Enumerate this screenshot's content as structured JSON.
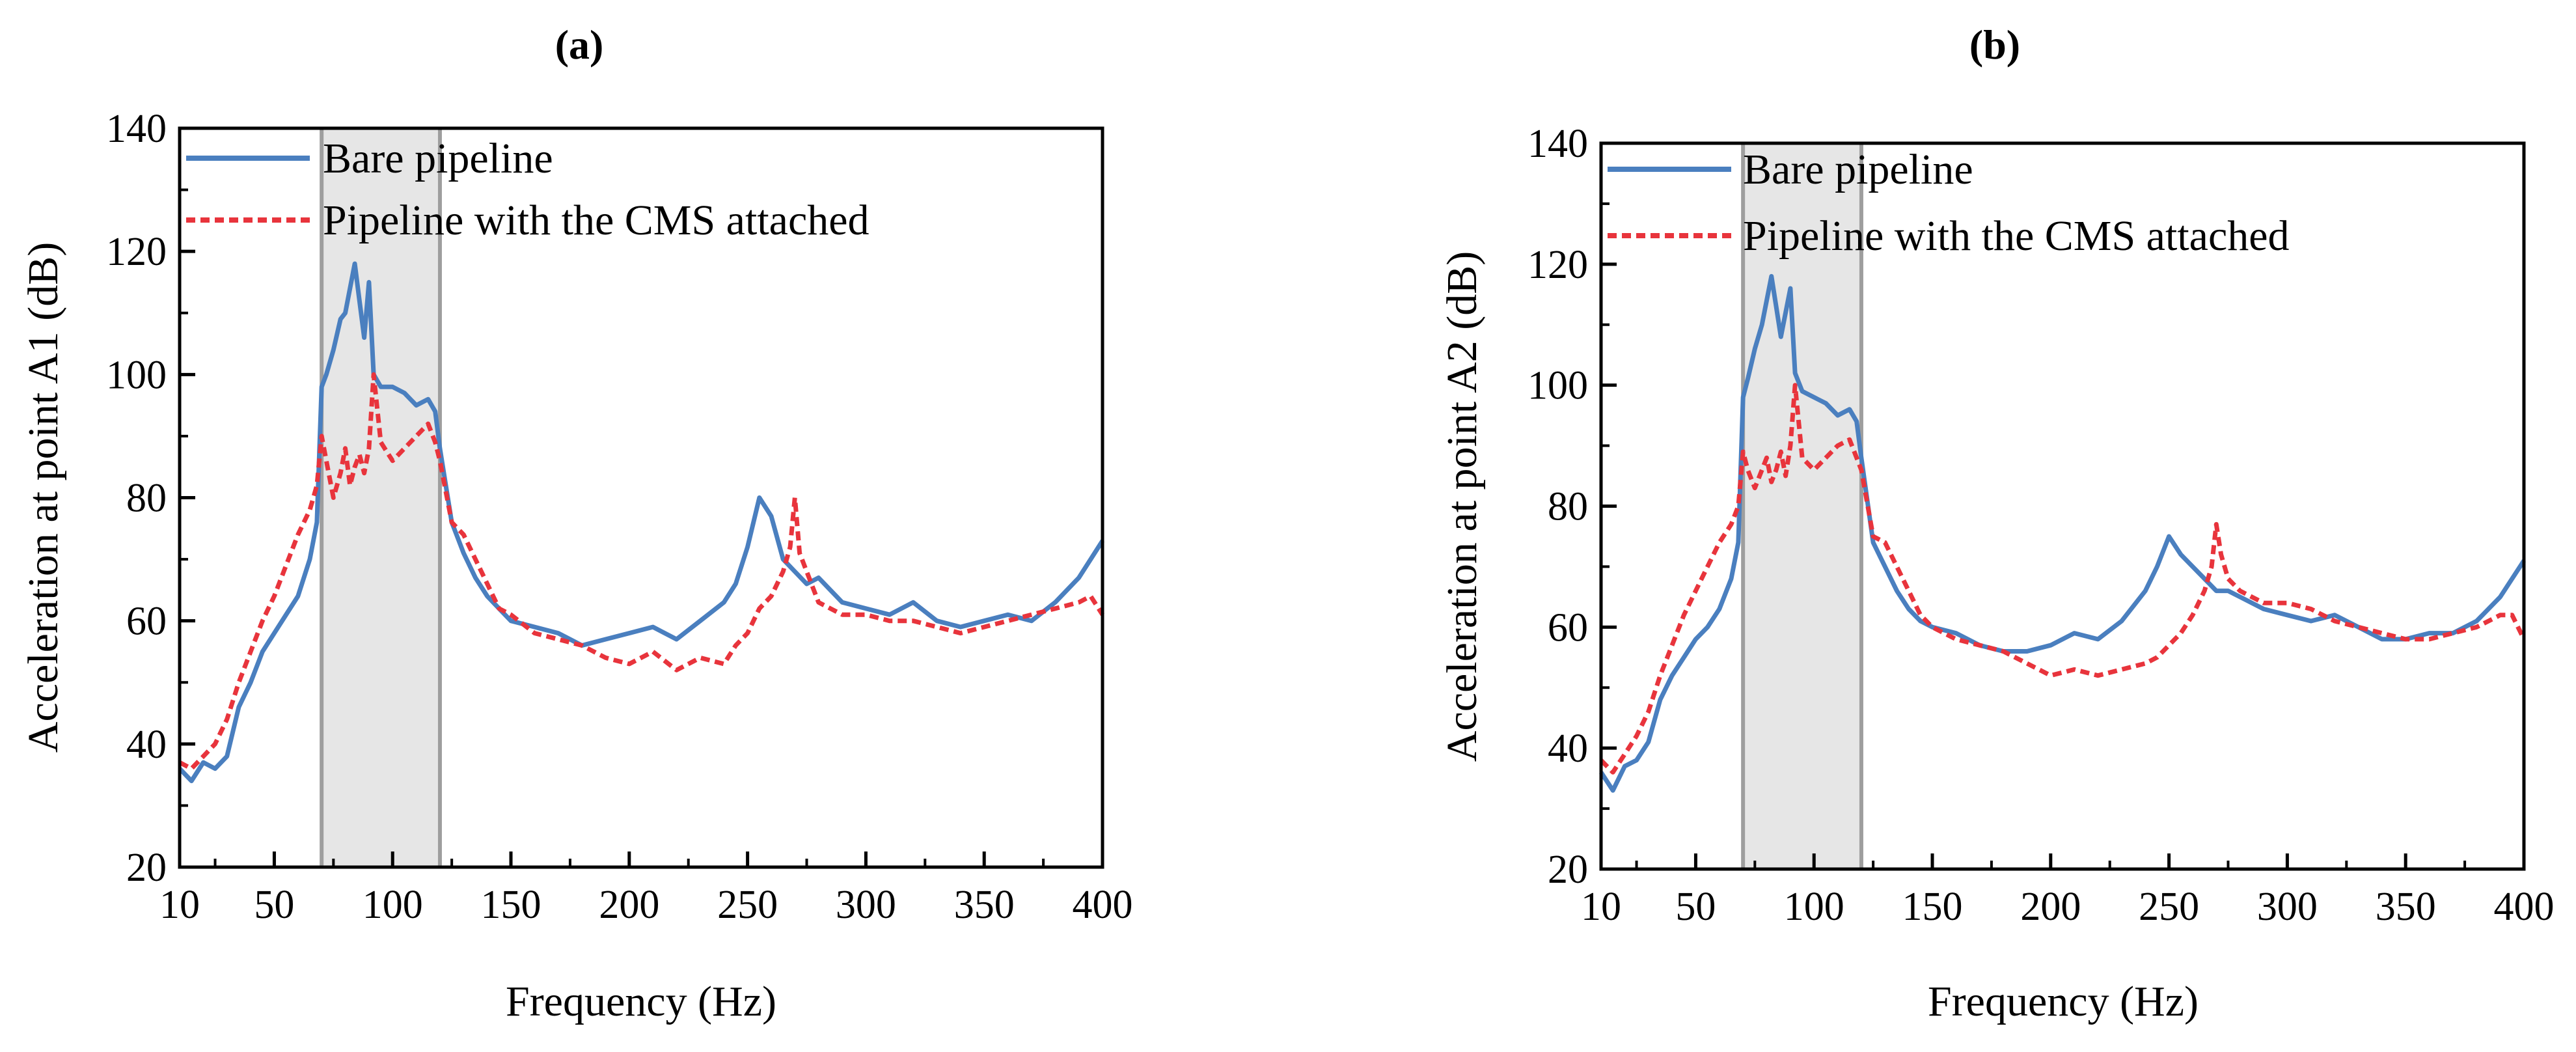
{
  "figure": {
    "description_free": true
  },
  "chart_data": [
    {
      "type": "line",
      "panel_label": "(a)",
      "xlabel": "Frequency (Hz)",
      "ylabel": "Acceleration at point A1 (dB)",
      "xlim": [
        10,
        400
      ],
      "ylim": [
        20,
        140
      ],
      "xticks": [
        10,
        50,
        100,
        150,
        200,
        250,
        300,
        350,
        400
      ],
      "yticks": [
        20,
        40,
        60,
        80,
        100,
        120,
        140
      ],
      "shaded_band": {
        "x_start": 70,
        "x_end": 120,
        "color": "#e6e6e6",
        "edge_color": "#9e9e9e"
      },
      "legend": {
        "placement": "top-left"
      },
      "series": [
        {
          "name": "Bare pipeline",
          "color": "#4a7fbf",
          "style": "solid",
          "x": [
            10,
            15,
            20,
            25,
            30,
            35,
            40,
            45,
            50,
            55,
            60,
            65,
            68,
            70,
            72,
            75,
            78,
            80,
            82,
            84,
            86,
            88,
            90,
            92,
            95,
            100,
            105,
            110,
            115,
            118,
            120,
            125,
            130,
            135,
            140,
            145,
            150,
            160,
            170,
            180,
            190,
            200,
            210,
            220,
            230,
            240,
            245,
            250,
            255,
            260,
            265,
            270,
            275,
            280,
            290,
            300,
            310,
            320,
            330,
            340,
            350,
            360,
            370,
            380,
            390,
            395,
            400
          ],
          "y": [
            36,
            34,
            37,
            36,
            38,
            46,
            50,
            55,
            58,
            61,
            64,
            70,
            76,
            98,
            100,
            104,
            109,
            110,
            114,
            118,
            112,
            106,
            115,
            100,
            98,
            98,
            97,
            95,
            96,
            94,
            88,
            76,
            71,
            67,
            64,
            62,
            60,
            59,
            58,
            56,
            57,
            58,
            59,
            57,
            60,
            63,
            66,
            72,
            80,
            77,
            70,
            68,
            66,
            67,
            63,
            62,
            61,
            63,
            60,
            59,
            60,
            61,
            60,
            63,
            67,
            70,
            73
          ]
        },
        {
          "name": "Pipeline with the CMS attached",
          "color": "#e8343c",
          "style": "dashed",
          "x": [
            10,
            15,
            20,
            25,
            30,
            35,
            40,
            45,
            50,
            55,
            60,
            65,
            68,
            70,
            72,
            75,
            78,
            80,
            82,
            84,
            86,
            88,
            90,
            92,
            95,
            100,
            105,
            110,
            115,
            118,
            120,
            125,
            130,
            135,
            140,
            145,
            150,
            160,
            170,
            180,
            190,
            200,
            210,
            220,
            230,
            240,
            245,
            250,
            255,
            260,
            265,
            268,
            270,
            272,
            275,
            280,
            290,
            300,
            310,
            320,
            330,
            340,
            350,
            360,
            370,
            380,
            390,
            395,
            400
          ],
          "y": [
            37,
            36,
            38,
            40,
            44,
            50,
            55,
            60,
            64,
            69,
            74,
            78,
            82,
            90,
            86,
            80,
            84,
            88,
            82,
            85,
            87,
            84,
            88,
            100,
            89,
            86,
            88,
            90,
            92,
            89,
            86,
            76,
            74,
            70,
            66,
            62,
            61,
            58,
            57,
            56,
            54,
            53,
            55,
            52,
            54,
            53,
            56,
            58,
            62,
            64,
            68,
            72,
            80,
            71,
            68,
            63,
            61,
            61,
            60,
            60,
            59,
            58,
            59,
            60,
            61,
            62,
            63,
            64,
            61
          ]
        }
      ]
    },
    {
      "type": "line",
      "panel_label": "(b)",
      "xlabel": "Frequency (Hz)",
      "ylabel": "Acceleration at point A2 (dB)",
      "xlim": [
        10,
        400
      ],
      "ylim": [
        20,
        140
      ],
      "xticks": [
        10,
        50,
        100,
        150,
        200,
        250,
        300,
        350,
        400
      ],
      "yticks": [
        20,
        40,
        60,
        80,
        100,
        120,
        140
      ],
      "shaded_band": {
        "x_start": 70,
        "x_end": 120,
        "color": "#e6e6e6",
        "edge_color": "#9e9e9e"
      },
      "legend": {
        "placement": "top-left"
      },
      "series": [
        {
          "name": "Bare pipeline",
          "color": "#4a7fbf",
          "style": "solid",
          "x": [
            10,
            15,
            20,
            25,
            30,
            35,
            40,
            45,
            50,
            55,
            60,
            65,
            68,
            70,
            72,
            75,
            78,
            80,
            82,
            84,
            86,
            88,
            90,
            92,
            95,
            100,
            105,
            110,
            115,
            118,
            120,
            125,
            130,
            135,
            140,
            145,
            150,
            160,
            170,
            180,
            190,
            200,
            210,
            220,
            230,
            240,
            245,
            250,
            255,
            260,
            265,
            270,
            275,
            280,
            290,
            300,
            310,
            320,
            330,
            340,
            350,
            360,
            370,
            380,
            390,
            395,
            400
          ],
          "y": [
            36,
            33,
            37,
            38,
            41,
            48,
            52,
            55,
            58,
            60,
            63,
            68,
            74,
            98,
            101,
            106,
            110,
            114,
            118,
            113,
            108,
            112,
            116,
            102,
            99,
            98,
            97,
            95,
            96,
            94,
            88,
            74,
            70,
            66,
            63,
            61,
            60,
            59,
            57,
            56,
            56,
            57,
            59,
            58,
            61,
            66,
            70,
            75,
            72,
            70,
            68,
            66,
            66,
            65,
            63,
            62,
            61,
            62,
            60,
            58,
            58,
            59,
            59,
            61,
            65,
            68,
            71
          ]
        },
        {
          "name": "Pipeline with the CMS attached",
          "color": "#e8343c",
          "style": "dashed",
          "x": [
            10,
            15,
            20,
            25,
            30,
            35,
            40,
            45,
            50,
            55,
            60,
            65,
            68,
            70,
            72,
            75,
            78,
            80,
            82,
            84,
            86,
            88,
            90,
            92,
            95,
            100,
            105,
            110,
            115,
            118,
            120,
            125,
            130,
            135,
            140,
            145,
            150,
            160,
            170,
            180,
            190,
            200,
            210,
            220,
            230,
            240,
            245,
            250,
            255,
            260,
            265,
            268,
            270,
            272,
            275,
            280,
            290,
            300,
            310,
            320,
            330,
            340,
            350,
            360,
            370,
            380,
            390,
            395,
            400
          ],
          "y": [
            38,
            36,
            39,
            42,
            46,
            52,
            57,
            62,
            66,
            70,
            74,
            77,
            80,
            89,
            86,
            83,
            86,
            88,
            84,
            86,
            89,
            85,
            90,
            100,
            88,
            86,
            88,
            90,
            91,
            88,
            86,
            75,
            74,
            70,
            66,
            62,
            60,
            58,
            57,
            56,
            54,
            52,
            53,
            52,
            53,
            54,
            55,
            57,
            59,
            62,
            66,
            70,
            77,
            72,
            68,
            66,
            64,
            64,
            63,
            61,
            60,
            59,
            58,
            58,
            59,
            60,
            62,
            62,
            58
          ]
        }
      ]
    }
  ]
}
